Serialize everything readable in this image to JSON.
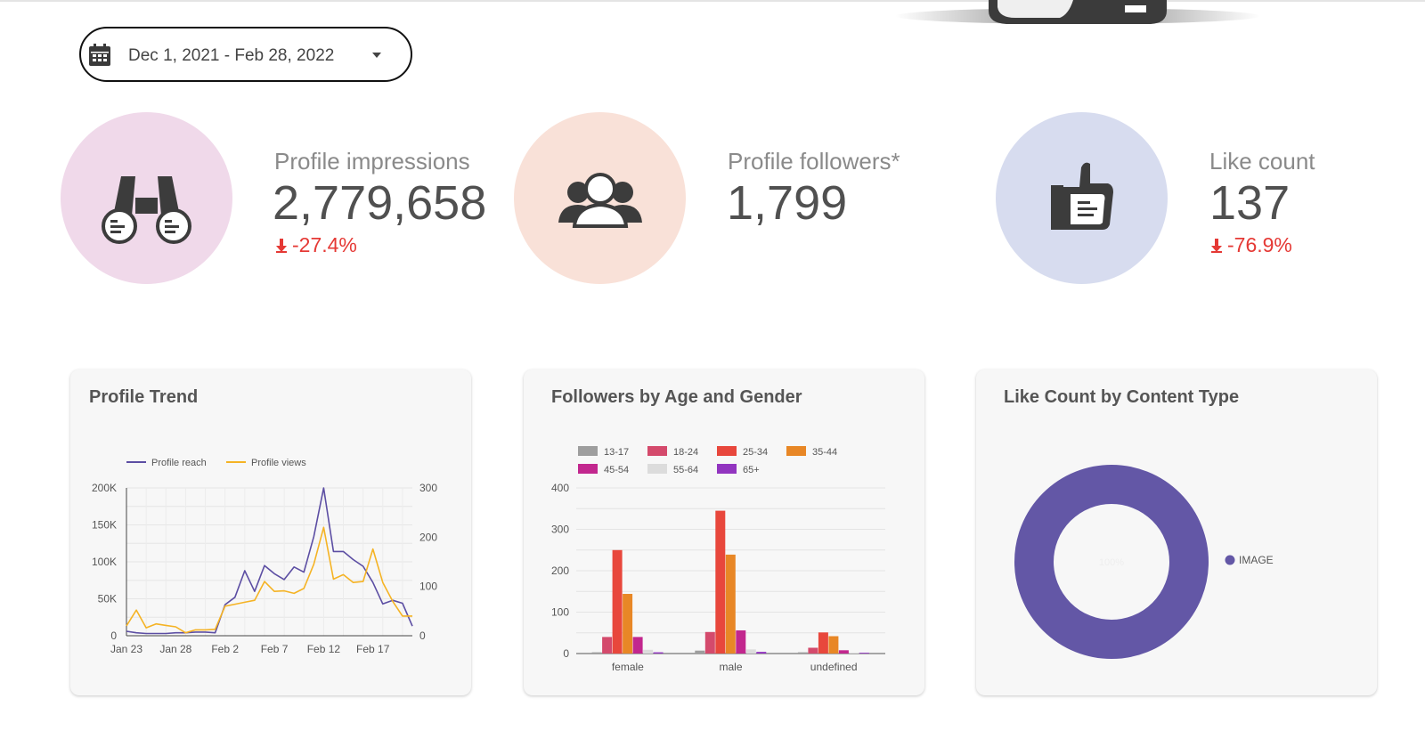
{
  "date_range": {
    "value": "Dec 1, 2021 - Feb 28, 2022"
  },
  "kpis": [
    {
      "label": "Profile impressions",
      "value": "2,779,658",
      "delta": "-27.4%",
      "icon": "binoculars-icon",
      "color": "#f0d9ea"
    },
    {
      "label": "Profile followers*",
      "value": "1,799",
      "delta": "",
      "icon": "group-icon",
      "color": "#f9e1d8"
    },
    {
      "label": "Like count",
      "value": "137",
      "delta": "-76.9%",
      "icon": "thumbs-up-icon",
      "color": "#d7dcef"
    }
  ],
  "colors": {
    "negative": "#e53935",
    "reach": "#5c4ea3",
    "views": "#f5b324",
    "donut": "#6357a6"
  },
  "chart_data": [
    {
      "type": "line",
      "title": "Profile Trend",
      "x_ticks": [
        "Jan 23",
        "Jan 28",
        "Feb 2",
        "Feb 7",
        "Feb 12",
        "Feb 17"
      ],
      "x": [
        "Jan 23",
        "Jan 24",
        "Jan 25",
        "Jan 26",
        "Jan 27",
        "Jan 28",
        "Jan 29",
        "Jan 30",
        "Jan 31",
        "Feb 1",
        "Feb 2",
        "Feb 3",
        "Feb 4",
        "Feb 5",
        "Feb 6",
        "Feb 7",
        "Feb 8",
        "Feb 9",
        "Feb 10",
        "Feb 11",
        "Feb 12",
        "Feb 13",
        "Feb 14",
        "Feb 15",
        "Feb 16",
        "Feb 17",
        "Feb 18",
        "Feb 19",
        "Feb 20",
        "Feb 21"
      ],
      "series": [
        {
          "name": "Profile reach",
          "axis": "left",
          "values": [
            6000,
            4000,
            3000,
            3000,
            3000,
            4000,
            4000,
            5000,
            5000,
            4000,
            42000,
            52000,
            88000,
            60000,
            95000,
            84000,
            76000,
            93000,
            86000,
            134000,
            200000,
            114000,
            114000,
            103000,
            94000,
            72000,
            43000,
            48000,
            44000,
            13000
          ]
        },
        {
          "name": "Profile views",
          "axis": "right",
          "values": [
            20,
            52,
            16,
            24,
            21,
            18,
            6,
            12,
            12,
            13,
            60,
            64,
            68,
            72,
            110,
            90,
            91,
            86,
            96,
            145,
            220,
            115,
            124,
            108,
            110,
            176,
            108,
            70,
            40,
            40
          ]
        }
      ],
      "y_left": {
        "ticks": [
          "0",
          "50K",
          "100K",
          "150K",
          "200K"
        ],
        "range": [
          0,
          200000
        ]
      },
      "y_right": {
        "ticks": [
          "0",
          "100",
          "200",
          "300"
        ],
        "range": [
          0,
          300
        ]
      },
      "legend_position": "top"
    },
    {
      "type": "bar",
      "title": "Followers by Age and Gender",
      "categories": [
        "female",
        "male",
        "undefined"
      ],
      "series": [
        {
          "name": "13-17",
          "color": "#9e9e9e",
          "values": [
            3,
            7,
            3
          ]
        },
        {
          "name": "18-24",
          "color": "#d44a6c",
          "values": [
            40,
            52,
            14
          ]
        },
        {
          "name": "25-34",
          "color": "#e8473c",
          "values": [
            250,
            345,
            51
          ]
        },
        {
          "name": "35-44",
          "color": "#e88726",
          "values": [
            144,
            239,
            42
          ]
        },
        {
          "name": "45-54",
          "color": "#c2278e",
          "values": [
            40,
            56,
            8
          ]
        },
        {
          "name": "55-64",
          "color": "#dcdcdc",
          "values": [
            9,
            10,
            2
          ]
        },
        {
          "name": "65+",
          "color": "#9235c0",
          "values": [
            3,
            4,
            2
          ]
        }
      ],
      "y_ticks": [
        "0",
        "100",
        "200",
        "300",
        "400"
      ],
      "ylim": [
        0,
        400
      ],
      "legend_position": "top"
    },
    {
      "type": "pie",
      "title": "Like Count by Content Type",
      "slices": [
        {
          "label": "IMAGE",
          "value": 100,
          "color": "#6357a6"
        }
      ],
      "center_label": "100%",
      "legend_position": "right"
    }
  ]
}
